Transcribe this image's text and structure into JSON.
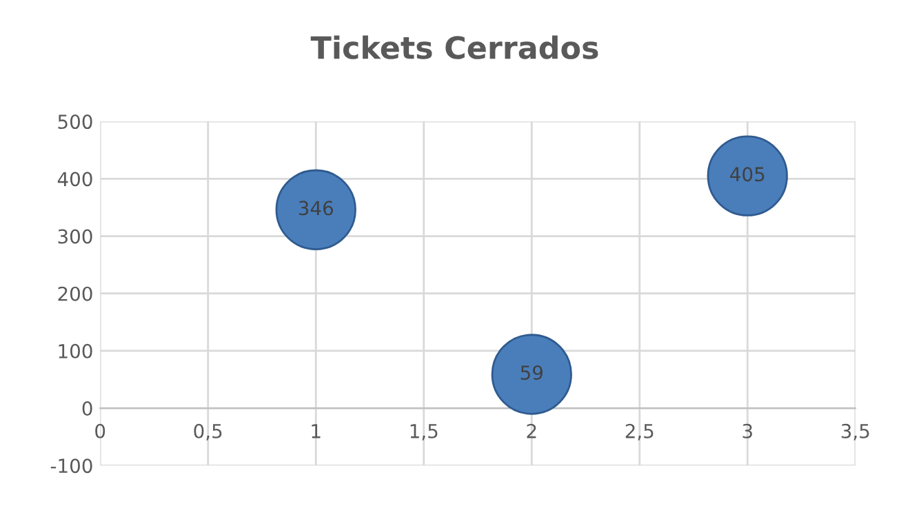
{
  "chart_data": {
    "type": "bubble",
    "title": "Tickets Cerrados",
    "x": [
      1,
      2,
      3
    ],
    "series": [
      {
        "color": "#4a7ebb",
        "values": [
          346,
          59,
          405
        ],
        "sizes": [
          1,
          1,
          1
        ]
      }
    ],
    "data_labels": true,
    "xlim": [
      0,
      3.5
    ],
    "xticks": [
      {
        "value": 0,
        "label": "0"
      },
      {
        "value": 0.5,
        "label": "0,5"
      },
      {
        "value": 1,
        "label": "1"
      },
      {
        "value": 1.5,
        "label": "1,5"
      },
      {
        "value": 2,
        "label": "2"
      },
      {
        "value": 2.5,
        "label": "2,5"
      },
      {
        "value": 3,
        "label": "3"
      },
      {
        "value": 3.5,
        "label": "3,5"
      }
    ],
    "ylim": [
      -100,
      500
    ],
    "yticks": [
      -100,
      0,
      100,
      200,
      300,
      400,
      500
    ],
    "grid": true
  }
}
